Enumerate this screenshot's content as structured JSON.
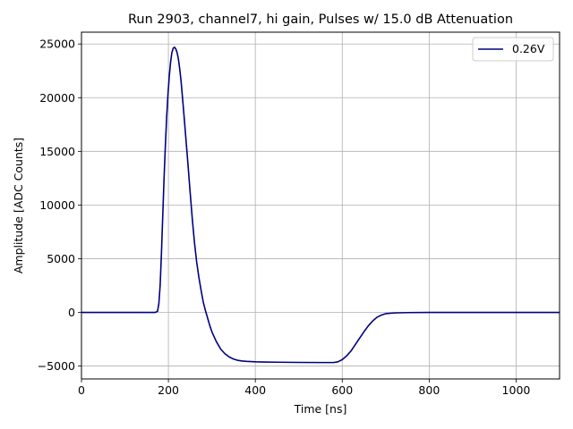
{
  "chart_data": {
    "type": "line",
    "title": "Run 2903, channel7, hi gain, Pulses w/ 15.0 dB Attenuation",
    "xlabel": "Time [ns]",
    "ylabel": "Amplitude [ADC Counts]",
    "xlim": [
      0,
      1100
    ],
    "ylim": [
      -6200,
      26100
    ],
    "x_ticks": [
      0,
      200,
      400,
      600,
      800,
      1000
    ],
    "y_ticks": [
      -5000,
      0,
      5000,
      10000,
      15000,
      20000,
      25000
    ],
    "x_tick_labels": [
      "0",
      "200",
      "400",
      "600",
      "800",
      "1000"
    ],
    "y_tick_labels": [
      "−5000",
      "0",
      "5000",
      "10000",
      "15000",
      "20000",
      "25000"
    ],
    "grid": true,
    "legend_position": "top-right",
    "series": [
      {
        "name": "0.26V",
        "color": "#000080",
        "x": [
          0,
          50,
          100,
          150,
          170,
          175,
          178,
          181,
          184,
          187,
          190,
          193,
          196,
          199,
          202,
          205,
          208,
          211,
          214,
          217,
          220,
          223,
          226,
          229,
          232,
          236,
          240,
          245,
          250,
          255,
          260,
          265,
          270,
          275,
          280,
          285,
          290,
          295,
          300,
          310,
          320,
          330,
          340,
          350,
          360,
          370,
          380,
          390,
          400,
          420,
          450,
          500,
          550,
          580,
          590,
          600,
          610,
          620,
          630,
          640,
          650,
          660,
          670,
          680,
          690,
          700,
          720,
          750,
          800,
          850,
          900,
          950,
          1000,
          1050,
          1100
        ],
        "y": [
          0,
          0,
          0,
          0,
          0,
          100,
          800,
          2500,
          5500,
          9000,
          12500,
          15500,
          18200,
          20300,
          22000,
          23300,
          24200,
          24600,
          24700,
          24550,
          24200,
          23600,
          22700,
          21600,
          20200,
          18300,
          16300,
          13800,
          11200,
          8700,
          6500,
          4700,
          3300,
          2100,
          1000,
          200,
          -500,
          -1200,
          -1800,
          -2700,
          -3400,
          -3850,
          -4150,
          -4350,
          -4470,
          -4530,
          -4560,
          -4580,
          -4600,
          -4620,
          -4640,
          -4660,
          -4670,
          -4670,
          -4600,
          -4400,
          -4050,
          -3600,
          -3000,
          -2400,
          -1800,
          -1250,
          -800,
          -450,
          -250,
          -120,
          -50,
          -20,
          0,
          0,
          0,
          0,
          0,
          0,
          0
        ]
      }
    ]
  }
}
